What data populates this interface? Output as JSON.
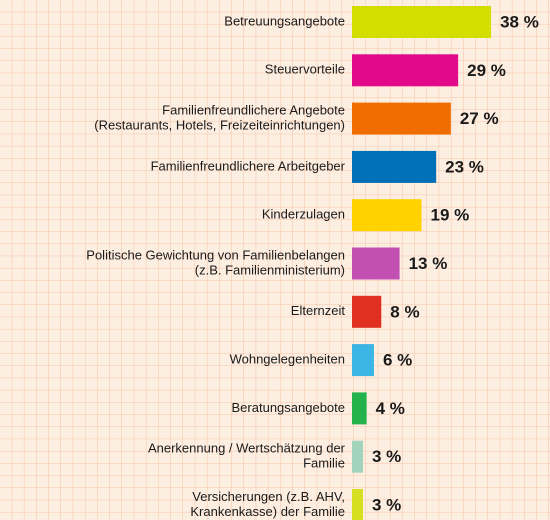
{
  "chart_data": {
    "type": "bar",
    "orientation": "horizontal",
    "categories": [
      [
        "Betreuungsangebote"
      ],
      [
        "Steuervorteile"
      ],
      [
        "Familienfreundlichere Angebote",
        "(Restaurants, Hotels, Freizeiteinrichtungen)"
      ],
      [
        "Familienfreundlichere Arbeitgeber"
      ],
      [
        "Kinderzulagen"
      ],
      [
        "Politische Gewichtung von Familienbelangen",
        "(z.B. Familienministerium)"
      ],
      [
        "Elternzeit"
      ],
      [
        "Wohngelegenheiten"
      ],
      [
        "Beratungsangebote"
      ],
      [
        "Anerkennung / Wertschätzung der",
        "Familie"
      ],
      [
        "Versicherungen (z.B. AHV,",
        "Krankenkasse) der Familie"
      ]
    ],
    "values": [
      38,
      29,
      27,
      23,
      19,
      13,
      8,
      6,
      4,
      3,
      3
    ],
    "value_labels": [
      "38 %",
      "29 %",
      "27 %",
      "23 %",
      "19 %",
      "13 %",
      "8 %",
      "6 %",
      "4 %",
      "3 %",
      "3 %"
    ],
    "colors": [
      "#d4df00",
      "#e2098b",
      "#ef6c00",
      "#0071b9",
      "#ffd200",
      "#c24fb2",
      "#e1301f",
      "#3bb5e4",
      "#23b24c",
      "#a3d4bb",
      "#d6e021"
    ]
  }
}
